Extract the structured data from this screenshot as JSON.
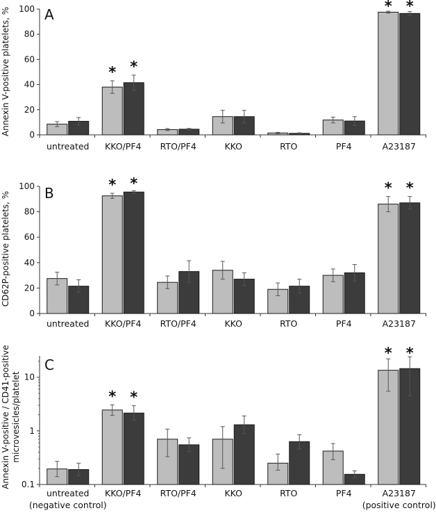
{
  "chart_data": [
    {
      "type": "bar",
      "panel": "A",
      "ylabel": "Annexin V-positive platelets, %",
      "yscale": "linear",
      "ylim": [
        0,
        100
      ],
      "yticks": [
        0,
        20,
        40,
        60,
        80,
        100
      ],
      "ytick_labels": [
        "0",
        "20",
        "40",
        "60",
        "80",
        "100"
      ],
      "categories": [
        "untreated",
        "KKO/PF4",
        "RTO/PF4",
        "KKO",
        "RTO",
        "PF4",
        "A23187"
      ],
      "category_sublabels": [
        "",
        "",
        "",
        "",
        "",
        "",
        ""
      ],
      "series": [
        {
          "name": "light",
          "color": "#bdbdbd",
          "values": [
            8.5,
            38,
            4.2,
            14.5,
            1.5,
            11.8,
            97.5
          ],
          "errors": [
            2,
            5,
            0.8,
            5,
            0.5,
            2.3,
            0.8
          ]
        },
        {
          "name": "dark",
          "color": "#3c3c3c",
          "values": [
            10.8,
            41.5,
            4.5,
            14.5,
            1.2,
            11,
            96.5
          ],
          "errors": [
            3,
            6,
            0.6,
            5,
            0.4,
            3.5,
            1.5
          ]
        }
      ],
      "significance": [
        [
          false,
          true,
          false,
          false,
          false,
          false,
          true
        ],
        [
          false,
          true,
          false,
          false,
          false,
          false,
          true
        ]
      ],
      "significance_mark": "*"
    },
    {
      "type": "bar",
      "panel": "B",
      "ylabel": "CD62P-positive platelets, %",
      "yscale": "linear",
      "ylim": [
        0,
        100
      ],
      "yticks": [
        0,
        20,
        40,
        60,
        80,
        100
      ],
      "ytick_labels": [
        "0",
        "20",
        "40",
        "60",
        "80",
        "100"
      ],
      "categories": [
        "untreated",
        "KKO/PF4",
        "RTO/PF4",
        "KKO",
        "RTO",
        "PF4",
        "A23187"
      ],
      "category_sublabels": [
        "",
        "",
        "",
        "",
        "",
        "",
        ""
      ],
      "series": [
        {
          "name": "light",
          "color": "#bdbdbd",
          "values": [
            27.5,
            92.5,
            24.5,
            34,
            19,
            30,
            86
          ],
          "errors": [
            5,
            2,
            5,
            7,
            5,
            5,
            6
          ]
        },
        {
          "name": "dark",
          "color": "#3c3c3c",
          "values": [
            21.5,
            95.5,
            33,
            27,
            21.5,
            32,
            87
          ],
          "errors": [
            5,
            1,
            8.5,
            5,
            5.5,
            6.5,
            5
          ]
        }
      ],
      "significance": [
        [
          false,
          true,
          false,
          false,
          false,
          false,
          true
        ],
        [
          false,
          true,
          false,
          false,
          false,
          false,
          true
        ]
      ],
      "significance_mark": "*"
    },
    {
      "type": "bar",
      "panel": "C",
      "ylabel_lines": [
        "Annexin V-positive / CD41-positive",
        "microvesicles/platelet"
      ],
      "yscale": "log",
      "ylim": [
        0.1,
        25
      ],
      "yticks": [
        0.1,
        1,
        10
      ],
      "ytick_labels": [
        "0.1",
        "1",
        "10"
      ],
      "categories": [
        "untreated",
        "KKO/PF4",
        "RTO/PF4",
        "KKO",
        "RTO",
        "PF4",
        "A23187"
      ],
      "category_sublabels": [
        "(negative control)",
        "",
        "",
        "",
        "",
        "",
        "(positive control)"
      ],
      "series": [
        {
          "name": "light",
          "color": "#bdbdbd",
          "values": [
            0.195,
            2.45,
            0.7,
            0.7,
            0.25,
            0.42,
            13.5
          ],
          "err_low": [
            0.14,
            1.95,
            0.33,
            0.2,
            0.185,
            0.29,
            5.5
          ],
          "err_high": [
            0.27,
            3.05,
            1.08,
            1.2,
            0.37,
            0.58,
            22
          ]
        },
        {
          "name": "dark",
          "color": "#3c3c3c",
          "values": [
            0.19,
            2.15,
            0.55,
            1.3,
            0.63,
            0.155,
            14.5
          ],
          "err_low": [
            0.145,
            1.6,
            0.41,
            0.9,
            0.46,
            0.135,
            4.5
          ],
          "err_high": [
            0.25,
            2.95,
            0.74,
            1.9,
            0.85,
            0.18,
            24
          ]
        }
      ],
      "significance": [
        [
          false,
          true,
          false,
          false,
          false,
          false,
          true
        ],
        [
          false,
          true,
          false,
          false,
          false,
          false,
          true
        ]
      ],
      "significance_mark": "*"
    }
  ]
}
